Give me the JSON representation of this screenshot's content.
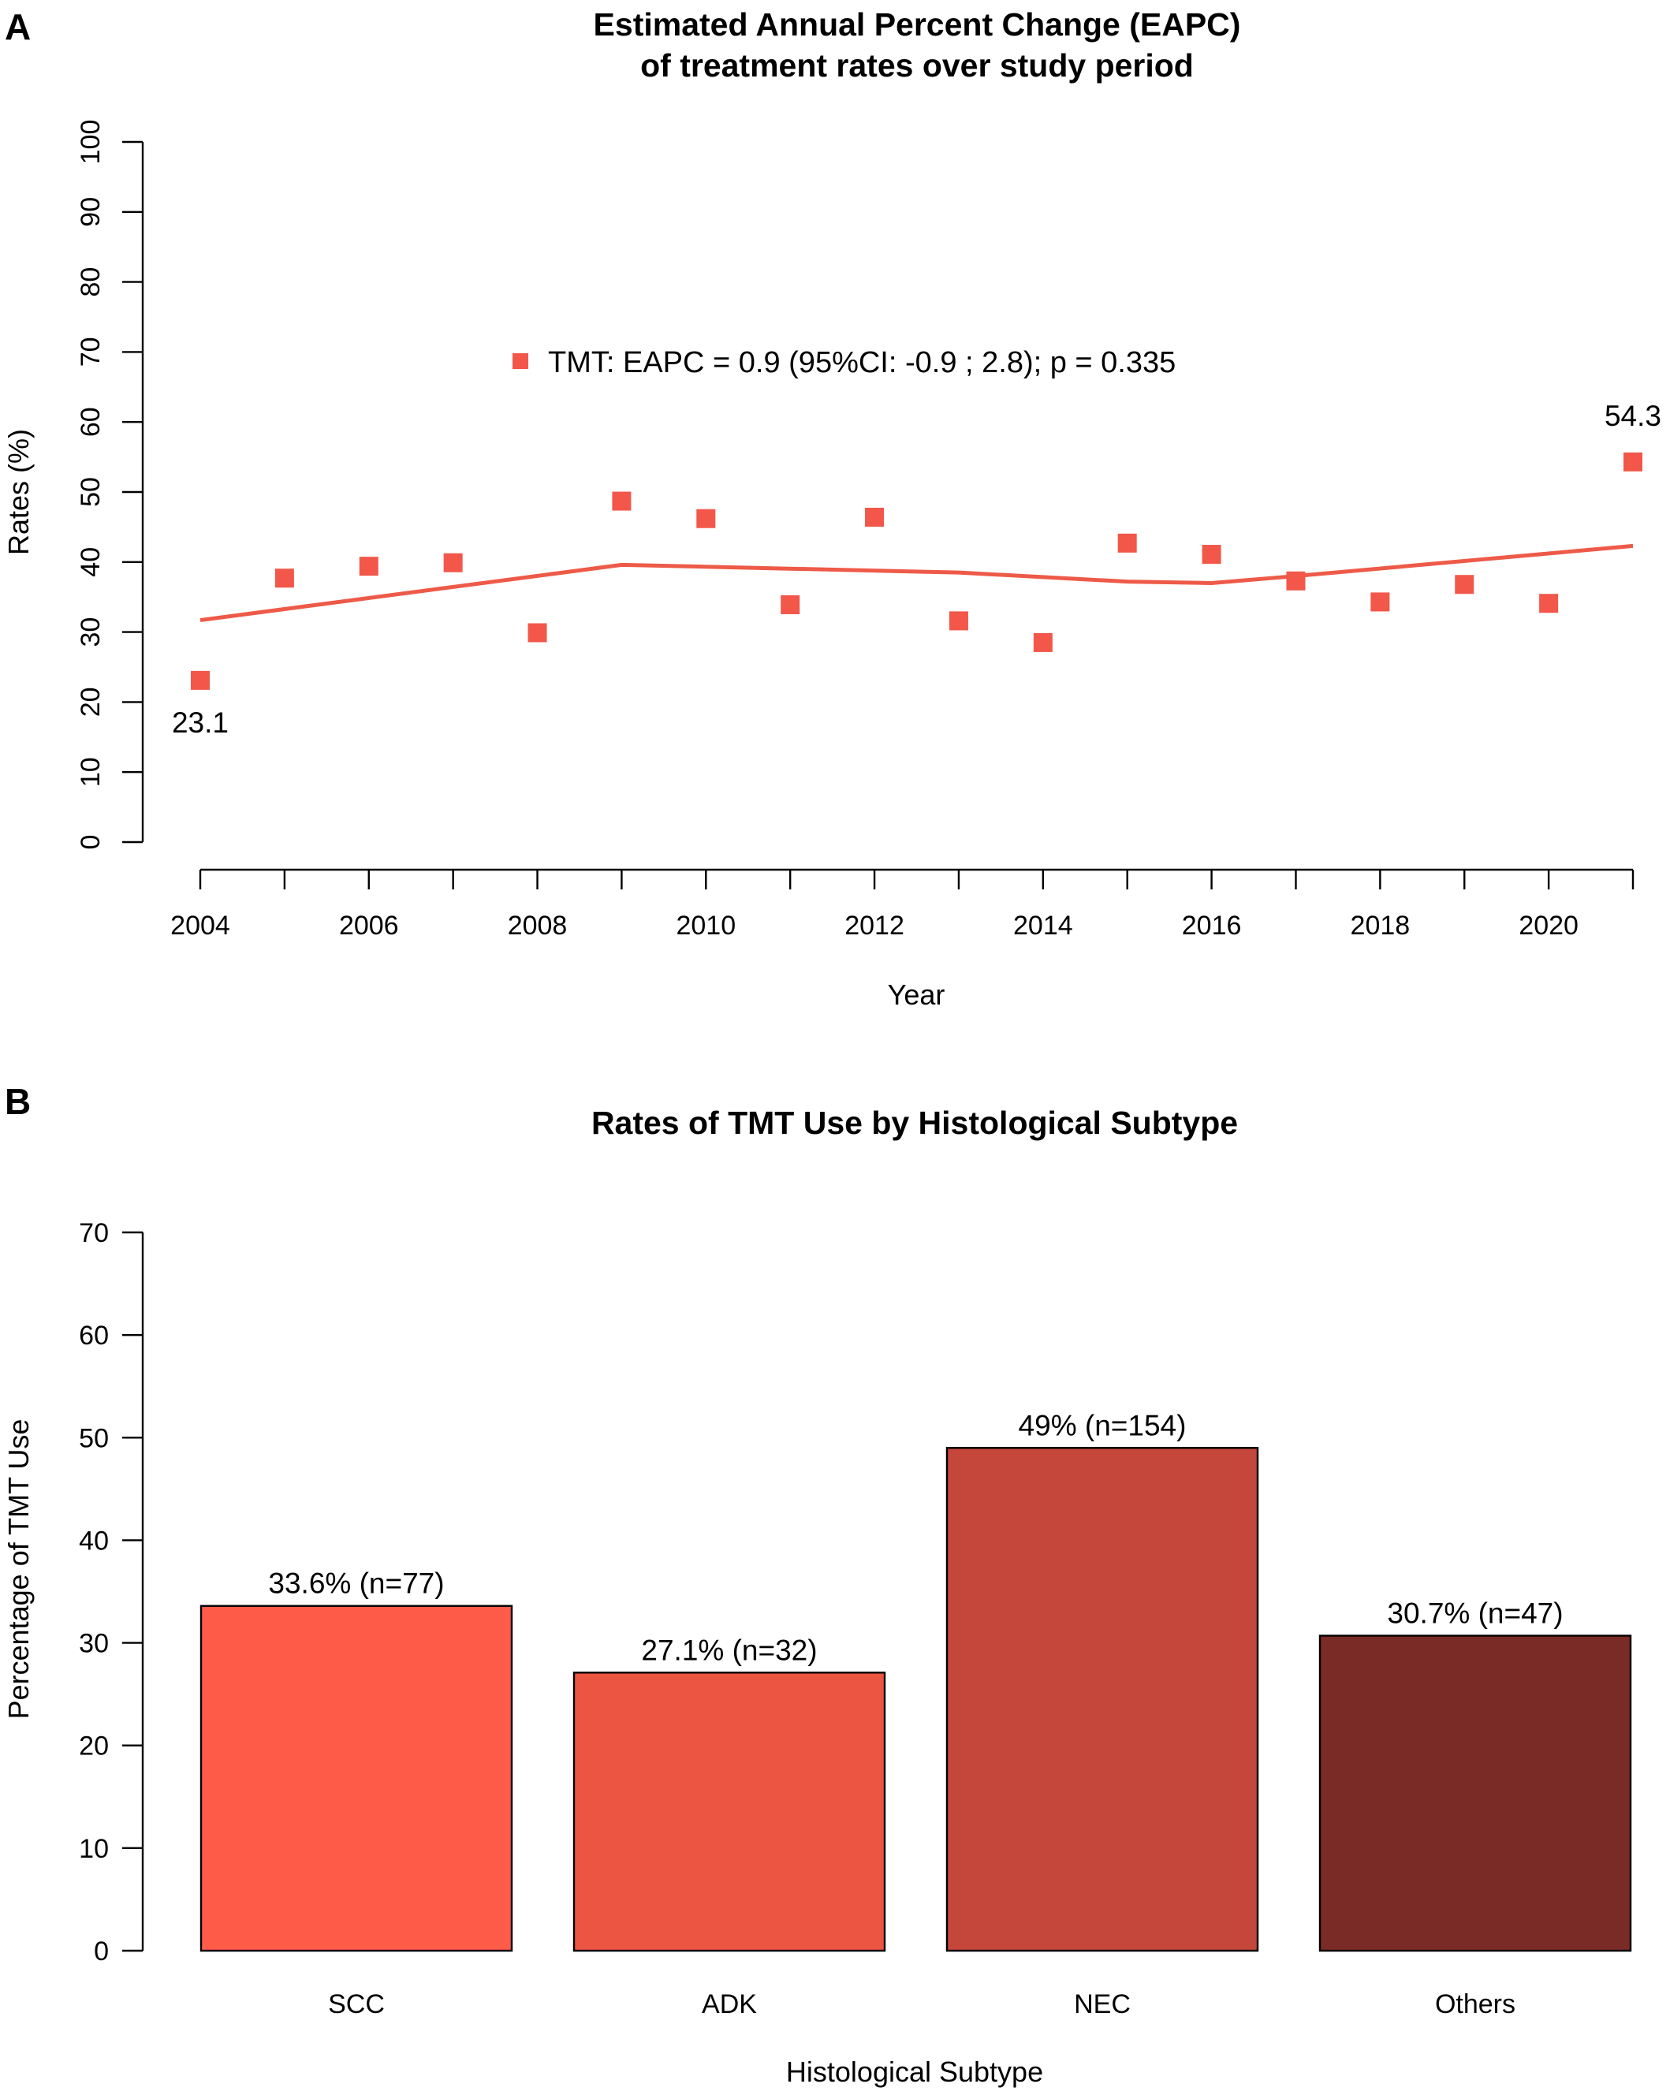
{
  "colors": {
    "point": "#F2574A",
    "trend": "#EE5A48",
    "bars": [
      "#FF5B49",
      "#EC5541",
      "#C5463A",
      "#7A2B26"
    ]
  },
  "chart_data": [
    {
      "panel": "A",
      "type": "scatter",
      "title": [
        "Estimated Annual Percent Change (EAPC)",
        "of treatment rates over study period"
      ],
      "xlabel": "Year",
      "ylabel": "Rates (%)",
      "xlim": [
        2004,
        2021
      ],
      "ylim": [
        0,
        100
      ],
      "xticks": [
        "2004",
        "2006",
        "2008",
        "2010",
        "2012",
        "2014",
        "2016",
        "2018",
        "2020"
      ],
      "yticks": [
        "0",
        "10",
        "20",
        "30",
        "40",
        "50",
        "60",
        "70",
        "80",
        "90",
        "100"
      ],
      "legend": "TMT: EAPC = 0.9 (95%CI: -0.9 ; 2.8); p = 0.335",
      "legend_position": "top-center",
      "grid": false,
      "series": [
        {
          "x": [
            2004,
            2005,
            2006,
            2007,
            2008,
            2009,
            2010,
            2011,
            2012,
            2013,
            2014,
            2015,
            2016,
            2017,
            2018,
            2019,
            2020,
            2021
          ],
          "y": [
            23.1,
            37.7,
            39.4,
            39.9,
            29.9,
            48.7,
            46.2,
            33.9,
            46.4,
            31.6,
            28.5,
            42.7,
            41.1,
            37.3,
            34.3,
            36.8,
            34.1,
            54.3
          ]
        }
      ],
      "trend": {
        "x": [
          2004,
          2009,
          2013,
          2015,
          2016,
          2017,
          2021
        ],
        "y": [
          31.7,
          39.6,
          38.5,
          37.2,
          37.0,
          38.0,
          42.3
        ]
      },
      "annotations": [
        {
          "x": 2004,
          "y": 23.1,
          "text": "23.1"
        },
        {
          "x": 2021,
          "y": 54.3,
          "text": "54.3"
        }
      ]
    },
    {
      "panel": "B",
      "type": "bar",
      "title": "Rates of TMT Use by Histological Subtype",
      "xlabel": "Histological Subtype",
      "ylabel": "Percentage of TMT Use",
      "ylim": [
        0,
        70
      ],
      "yticks": [
        "0",
        "10",
        "20",
        "30",
        "40",
        "50",
        "60",
        "70"
      ],
      "grid": false,
      "categories": [
        "SCC",
        "ADK",
        "NEC",
        "Others"
      ],
      "values": [
        33.6,
        27.1,
        49.0,
        30.7
      ],
      "labels": [
        "33.6% (n=77)",
        "27.1% (n=32)",
        "49% (n=154)",
        "30.7% (n=47)"
      ]
    }
  ]
}
